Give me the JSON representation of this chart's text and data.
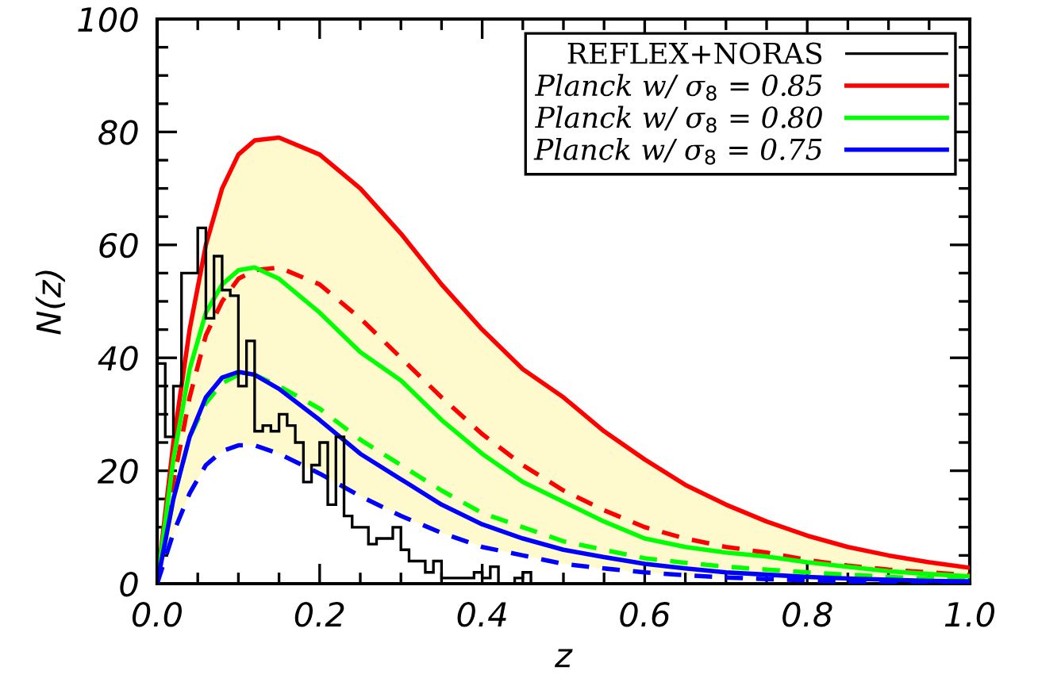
{
  "chart_data": {
    "type": "line",
    "xlabel": "z",
    "ylabel": "N(z)",
    "xlim": [
      0.0,
      1.0
    ],
    "ylim": [
      0,
      100
    ],
    "xticks": [
      {
        "value": 0.0,
        "label": "0.0"
      },
      0.2,
      0.4,
      0.6,
      0.8,
      {
        "value": 1.0,
        "label": "1.0"
      }
    ],
    "yticks": [
      0,
      20,
      40,
      60,
      80,
      100
    ],
    "legend": "top right",
    "grid": false,
    "x": [
      0,
      0.02,
      0.04,
      0.06,
      0.08,
      0.1,
      0.12,
      0.15,
      0.2,
      0.25,
      0.3,
      0.35,
      0.4,
      0.45,
      0.5,
      0.55,
      0.6,
      0.65,
      0.7,
      0.75,
      0.8,
      0.85,
      0.9,
      0.95,
      1.0
    ],
    "series": [
      {
        "name": "REFLEX+NORAS",
        "type": "histogram",
        "color": "#000000",
        "bins": [
          0.0,
          0.01,
          0.02,
          0.03,
          0.04,
          0.05,
          0.06,
          0.07,
          0.08,
          0.09,
          0.1,
          0.11,
          0.12,
          0.13,
          0.14,
          0.15,
          0.16,
          0.17,
          0.18,
          0.19,
          0.2,
          0.21,
          0.22,
          0.23,
          0.24,
          0.25,
          0.26,
          0.27,
          0.28,
          0.29,
          0.3,
          0.31,
          0.32,
          0.33,
          0.34,
          0.35,
          0.36,
          0.37,
          0.38,
          0.39,
          0.4,
          0.41,
          0.42,
          0.43,
          0.44,
          0.45,
          0.46
        ],
        "values": [
          39,
          26,
          35,
          55,
          55,
          63,
          47,
          58,
          52,
          51,
          35,
          43,
          27,
          28,
          27,
          30,
          28,
          25,
          18,
          21,
          25,
          14,
          26,
          12,
          10,
          10,
          7,
          8,
          8,
          10,
          6,
          4,
          4,
          2,
          4,
          1,
          1,
          1,
          1,
          2,
          1,
          3,
          0,
          0,
          1,
          2
        ]
      },
      {
        "name": "Planck w/ σ$_{8}$ = 0.85",
        "color": "#ff0000",
        "line_style": "solid",
        "values": [
          0,
          25,
          45,
          60,
          70,
          76,
          78.5,
          79,
          76,
          70,
          62,
          53,
          45,
          38,
          33,
          27,
          22,
          17.5,
          14,
          11,
          8.5,
          6.5,
          5,
          3.8,
          2.8
        ],
        "lower": [
          0,
          9,
          16,
          21,
          23.5,
          24.5,
          24.5,
          23,
          19.5,
          15.5,
          12,
          9,
          6.5,
          5,
          3.5,
          2.7,
          2,
          1.5,
          1.1,
          0.8,
          0.6,
          0.4,
          0.3,
          0.2,
          0.2
        ],
        "upper": [
          0,
          25,
          45,
          60,
          70,
          76,
          78.5,
          79,
          76,
          70,
          62,
          53,
          45,
          38,
          33,
          27,
          22,
          17.5,
          14,
          11,
          8.5,
          6.5,
          5,
          3.8,
          2.8
        ]
      },
      {
        "color": "#ff0000",
        "line_style": "dashed",
        "values": [
          0,
          18,
          33,
          44,
          50,
          54,
          55.5,
          56,
          53,
          47,
          40,
          33,
          26.5,
          21,
          16.5,
          13,
          10,
          8,
          6.5,
          5.5,
          4.2,
          3.2,
          2.5,
          2,
          1.5
        ]
      },
      {
        "name": "Planck w/ σ$_{8}$ = 0.80",
        "color": "#00ff00",
        "line_style": "solid",
        "values": [
          0,
          22,
          38,
          48,
          53,
          55.5,
          56,
          54,
          48,
          41,
          36,
          29,
          23,
          18,
          14.5,
          11,
          8,
          6.5,
          5.5,
          4.8,
          3.8,
          3,
          2.2,
          1.7,
          1.3
        ]
      },
      {
        "color": "#00ff00",
        "line_style": "dashed",
        "values": [
          0,
          15,
          26,
          32,
          35.5,
          37,
          37,
          35,
          31,
          25.5,
          21,
          16.5,
          12.5,
          10,
          7.5,
          6,
          4.5,
          3.7,
          3,
          2.5,
          2,
          1.6,
          1.2,
          0.9,
          0.7
        ]
      },
      {
        "name": "Planck w/ σ$_{8}$ = 0.75",
        "color": "#0000ff",
        "line_style": "solid",
        "values": [
          0,
          15,
          26,
          33,
          36.5,
          37.5,
          37,
          34.5,
          29,
          23,
          18.5,
          14,
          10.5,
          8,
          6,
          4.7,
          3.5,
          2.7,
          2,
          1.6,
          1.2,
          0.9,
          0.7,
          0.5,
          0.4
        ]
      },
      {
        "color": "#0000ff",
        "line_style": "dashed",
        "values": [
          0,
          9,
          16,
          21,
          23.5,
          24.5,
          24.5,
          23,
          19.5,
          15.5,
          12,
          9,
          6.5,
          5,
          3.5,
          2.7,
          2,
          1.5,
          1.1,
          0.8,
          0.6,
          0.4,
          0.3,
          0.2,
          0.2
        ]
      }
    ]
  }
}
